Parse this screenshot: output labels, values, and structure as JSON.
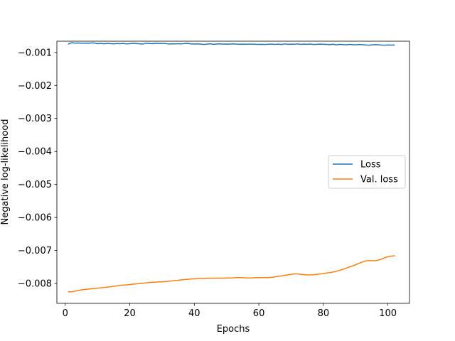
{
  "chart_data": {
    "type": "line",
    "title": "",
    "xlabel": "Epochs",
    "ylabel": "Negative log-likelihood",
    "xlim": [
      -2.6,
      106.7
    ],
    "ylim": [
      -0.0086,
      -0.00066
    ],
    "xticks": [
      0,
      20,
      40,
      60,
      80,
      100
    ],
    "xtick_labels": [
      "0",
      "20",
      "40",
      "60",
      "80",
      "100"
    ],
    "yticks": [
      -0.001,
      -0.002,
      -0.003,
      -0.004,
      -0.005,
      -0.006,
      -0.007,
      -0.008
    ],
    "ytick_labels": [
      "−0.001",
      "−0.002",
      "−0.003",
      "−0.004",
      "−0.005",
      "−0.006",
      "−0.007",
      "−0.008"
    ],
    "grid": false,
    "legend": {
      "placement": "center-right"
    },
    "colors": {
      "Loss": "#1f77b4",
      "Val. loss": "#ff7f0e"
    },
    "series": [
      {
        "name": "Loss",
        "color": "#1f77b4",
        "x": [
          1,
          2,
          3,
          4,
          5,
          6,
          7,
          8,
          9,
          10,
          11,
          12,
          13,
          14,
          15,
          16,
          17,
          18,
          19,
          20,
          21,
          22,
          23,
          24,
          25,
          26,
          27,
          28,
          29,
          30,
          31,
          32,
          33,
          34,
          35,
          36,
          37,
          38,
          39,
          40,
          41,
          42,
          43,
          44,
          45,
          46,
          47,
          48,
          49,
          50,
          51,
          52,
          53,
          54,
          55,
          56,
          57,
          58,
          59,
          60,
          61,
          62,
          63,
          64,
          65,
          66,
          67,
          68,
          69,
          70,
          71,
          72,
          73,
          74,
          75,
          76,
          77,
          78,
          79,
          80,
          81,
          82,
          83,
          84,
          85,
          86,
          87,
          88,
          89,
          90,
          91,
          92,
          93,
          94,
          95,
          96,
          97,
          98,
          99,
          100,
          101,
          102
        ],
        "y": [
          -0.000745,
          -0.000705,
          -0.00072,
          -0.000715,
          -0.00072,
          -0.000718,
          -0.000722,
          -0.000715,
          -0.000712,
          -0.000735,
          -0.000725,
          -0.000738,
          -0.000728,
          -0.000732,
          -0.00074,
          -0.00073,
          -0.000735,
          -0.000728,
          -0.000742,
          -0.000732,
          -0.000725,
          -0.00073,
          -0.000738,
          -0.000745,
          -0.00072,
          -0.000728,
          -0.000735,
          -0.000722,
          -0.00073,
          -0.000728,
          -0.000726,
          -0.000745,
          -0.000738,
          -0.00074,
          -0.000735,
          -0.000742,
          -0.00073,
          -0.000728,
          -0.00074,
          -0.000745,
          -0.000742,
          -0.00075,
          -0.00076,
          -0.000745,
          -0.000738,
          -0.000755,
          -0.000745,
          -0.000742,
          -0.000748,
          -0.000745,
          -0.00075,
          -0.000742,
          -0.000748,
          -0.000752,
          -0.00075,
          -0.000752,
          -0.000748,
          -0.00075,
          -0.000755,
          -0.000758,
          -0.000755,
          -0.00076,
          -0.000752,
          -0.000748,
          -0.000758,
          -0.00075,
          -0.00076,
          -0.000742,
          -0.000755,
          -0.00075,
          -0.000755,
          -0.000742,
          -0.000758,
          -0.000748,
          -0.000755,
          -0.000745,
          -0.00076,
          -0.000755,
          -0.00075,
          -0.000755,
          -0.000758,
          -0.000765,
          -0.000752,
          -0.00077,
          -0.000758,
          -0.000762,
          -0.00077,
          -0.000758,
          -0.000765,
          -0.00077,
          -0.00076,
          -0.000765,
          -0.000772,
          -0.00078,
          -0.00077,
          -0.000765,
          -0.00077,
          -0.000775,
          -0.00078,
          -0.000772,
          -0.000778,
          -0.000776
        ]
      },
      {
        "name": "Val. loss",
        "color": "#ff7f0e",
        "x": [
          1,
          2,
          3,
          4,
          5,
          6,
          7,
          8,
          9,
          10,
          11,
          12,
          13,
          14,
          15,
          16,
          17,
          18,
          19,
          20,
          21,
          22,
          23,
          24,
          25,
          26,
          27,
          28,
          29,
          30,
          31,
          32,
          33,
          34,
          35,
          36,
          37,
          38,
          39,
          40,
          41,
          42,
          43,
          44,
          45,
          46,
          47,
          48,
          49,
          50,
          51,
          52,
          53,
          54,
          55,
          56,
          57,
          58,
          59,
          60,
          61,
          62,
          63,
          64,
          65,
          66,
          67,
          68,
          69,
          70,
          71,
          72,
          73,
          74,
          75,
          76,
          77,
          78,
          79,
          80,
          81,
          82,
          83,
          84,
          85,
          86,
          87,
          88,
          89,
          90,
          91,
          92,
          93,
          94,
          95,
          96,
          97,
          98,
          99,
          100,
          101,
          102
        ],
        "y": [
          -0.00825,
          -0.00825,
          -0.00823,
          -0.00821,
          -0.00819,
          -0.00818,
          -0.00817,
          -0.00816,
          -0.00815,
          -0.00814,
          -0.00813,
          -0.00812,
          -0.00811,
          -0.0081,
          -0.00808,
          -0.00807,
          -0.00805,
          -0.00805,
          -0.00804,
          -0.00803,
          -0.00802,
          -0.00801,
          -0.008,
          -0.00799,
          -0.00798,
          -0.00797,
          -0.00796,
          -0.00796,
          -0.00795,
          -0.00795,
          -0.00794,
          -0.00793,
          -0.00792,
          -0.00791,
          -0.0079,
          -0.00789,
          -0.00788,
          -0.00787,
          -0.00786,
          -0.00786,
          -0.00785,
          -0.00785,
          -0.00785,
          -0.00784,
          -0.00784,
          -0.00784,
          -0.00784,
          -0.00784,
          -0.00784,
          -0.00783,
          -0.00783,
          -0.00783,
          -0.00782,
          -0.00782,
          -0.00782,
          -0.00783,
          -0.00783,
          -0.00783,
          -0.00782,
          -0.00782,
          -0.00782,
          -0.00782,
          -0.00782,
          -0.00781,
          -0.0078,
          -0.00778,
          -0.00777,
          -0.00775,
          -0.00774,
          -0.00772,
          -0.00771,
          -0.00771,
          -0.00772,
          -0.00773,
          -0.00774,
          -0.00774,
          -0.00773,
          -0.00772,
          -0.00771,
          -0.0077,
          -0.00768,
          -0.00767,
          -0.00765,
          -0.00763,
          -0.0076,
          -0.00757,
          -0.00754,
          -0.0075,
          -0.00747,
          -0.00743,
          -0.00739,
          -0.00735,
          -0.00732,
          -0.0073,
          -0.00731,
          -0.00731,
          -0.00729,
          -0.00726,
          -0.00722,
          -0.00719,
          -0.00717,
          -0.00716
        ]
      }
    ]
  }
}
